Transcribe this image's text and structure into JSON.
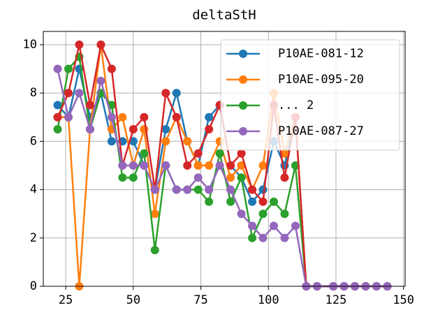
{
  "chart_data": {
    "type": "line",
    "title": "deltaStH",
    "x": [
      22,
      26,
      30,
      34,
      38,
      42,
      46,
      50,
      54,
      58,
      62,
      66,
      70,
      74,
      78,
      82,
      86,
      90,
      94,
      98,
      102,
      106,
      110,
      114,
      118,
      124,
      128,
      132,
      136,
      140,
      144
    ],
    "series": [
      {
        "name": "P10AE-081-12",
        "color": "#1f77b4",
        "values": [
          7.5,
          7,
          9,
          7,
          8,
          6,
          6,
          6,
          5,
          4,
          6.5,
          8,
          6,
          5,
          7,
          7.5,
          5,
          4.5,
          3.5,
          4,
          6,
          5,
          7,
          0,
          0,
          0,
          0,
          0,
          0,
          0,
          0
        ]
      },
      {
        "name": "P10AE-095-20",
        "color": "#ff7f0e",
        "values": [
          7,
          7,
          0,
          6.5,
          10,
          6.5,
          7,
          5,
          6.5,
          3,
          6,
          7,
          6,
          5,
          5,
          6,
          4.5,
          5,
          4,
          5,
          8,
          5.5,
          7,
          0,
          0,
          0,
          0,
          0,
          0,
          0,
          0
        ]
      },
      {
        "name": "... 2",
        "color": "#2ca02c",
        "values": [
          6.5,
          9,
          9.5,
          6.5,
          8,
          7.5,
          4.5,
          4.5,
          5.5,
          1.5,
          5,
          4,
          4,
          4,
          3.5,
          5.5,
          3.5,
          4.5,
          2,
          3,
          3.5,
          3,
          5,
          0,
          0,
          0,
          0,
          0,
          0,
          0,
          0
        ]
      },
      {
        "color": "#d62728",
        "values": [
          7,
          8,
          10,
          7.5,
          10,
          9,
          5,
          6.5,
          7,
          4,
          8,
          7,
          5,
          5.5,
          6.5,
          7.5,
          5,
          5.5,
          4,
          3.5,
          7.5,
          4.5,
          7,
          0,
          0,
          0,
          0,
          0,
          0,
          0,
          0
        ]
      },
      {
        "name": "P10AE-087-27",
        "color": "#9467bd",
        "values": [
          9,
          7,
          8,
          6.5,
          8.5,
          7,
          5,
          5,
          5,
          4,
          5,
          4,
          4,
          4.5,
          4,
          5,
          4,
          3,
          2.5,
          2,
          2.5,
          2,
          2.5,
          0,
          0,
          0,
          0,
          0,
          0,
          0,
          0
        ]
      }
    ],
    "xlim": [
      16.7,
      150.6
    ],
    "ylim": [
      0,
      10.55
    ],
    "xticks": [
      25,
      50,
      75,
      100,
      125,
      150
    ],
    "yticks": [
      0,
      2,
      4,
      6,
      8,
      10
    ],
    "grid": true,
    "legend": "upper right"
  }
}
